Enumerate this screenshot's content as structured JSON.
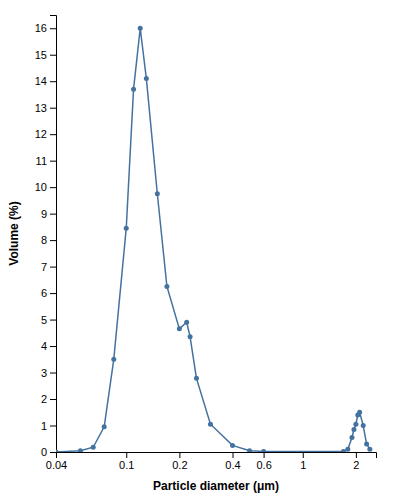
{
  "chart_data": {
    "type": "line",
    "x": [
      0.04,
      0.055,
      0.065,
      0.075,
      0.085,
      0.1,
      0.11,
      0.12,
      0.13,
      0.15,
      0.17,
      0.2,
      0.22,
      0.23,
      0.25,
      0.3,
      0.4,
      0.5,
      0.6,
      1.7,
      1.8,
      1.9,
      1.95,
      2.0,
      2.05,
      2.1,
      2.2,
      2.3,
      2.4
    ],
    "values": [
      0.0,
      0.05,
      0.18,
      0.95,
      3.5,
      8.45,
      13.7,
      16.0,
      14.1,
      9.75,
      6.25,
      4.65,
      4.9,
      4.35,
      2.78,
      1.05,
      0.25,
      0.05,
      0.02,
      0.02,
      0.1,
      0.55,
      0.85,
      1.05,
      1.4,
      1.5,
      1.0,
      0.3,
      0.1
    ],
    "color": "#4472a0",
    "marker": "circle",
    "xlabel": "Particle diameter (μm)",
    "ylabel": "Volume (%)",
    "log": "x",
    "xlim": [
      0.04,
      2.6
    ],
    "xticks": [
      0.04,
      0.1,
      0.2,
      0.4,
      0.6,
      1,
      2
    ],
    "ylim": [
      0,
      16.5
    ],
    "yticks": [
      0,
      1,
      2,
      3,
      4,
      5,
      6,
      7,
      8,
      9,
      10,
      11,
      12,
      13,
      14,
      15,
      16
    ],
    "grid": false
  }
}
